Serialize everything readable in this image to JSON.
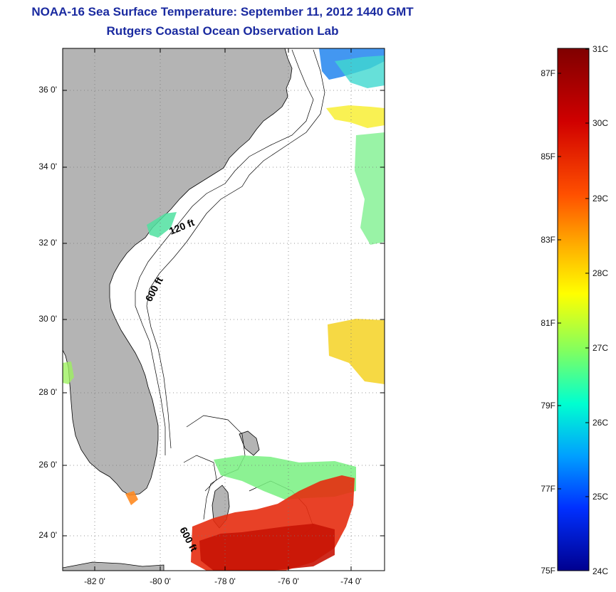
{
  "header": {
    "title_line1": "NOAA-16 Sea Surface Temperature:  September 11, 2012 1440 GMT",
    "title_line2": "Rutgers Coastal Ocean Observation Lab"
  },
  "map": {
    "lat_ticks": [
      "36 0'",
      "34 0'",
      "32 0'",
      "30 0'",
      "28 0'",
      "26 0'",
      "24 0'"
    ],
    "lon_ticks": [
      "-82 0'",
      "-80 0'",
      "-78 0'",
      "-76 0'",
      "-74 0'"
    ],
    "contour_labels": [
      "120 ft",
      "600 ft",
      "600 ft"
    ],
    "colors": {
      "land": "#b4b4b4",
      "ocean": "#ffffff",
      "grid": "#777777"
    }
  },
  "colorbar": {
    "f_labels": [
      "87F",
      "85F",
      "83F",
      "81F",
      "79F",
      "77F",
      "75F"
    ],
    "c_labels": [
      "31C",
      "30C",
      "29C",
      "28C",
      "27C",
      "26C",
      "25C",
      "24C"
    ],
    "gradient": [
      "#7f0000",
      "#ff0000",
      "#ff8000",
      "#ffff00",
      "#80ff80",
      "#00ffff",
      "#0080ff",
      "#0000ff",
      "#00008f"
    ]
  }
}
